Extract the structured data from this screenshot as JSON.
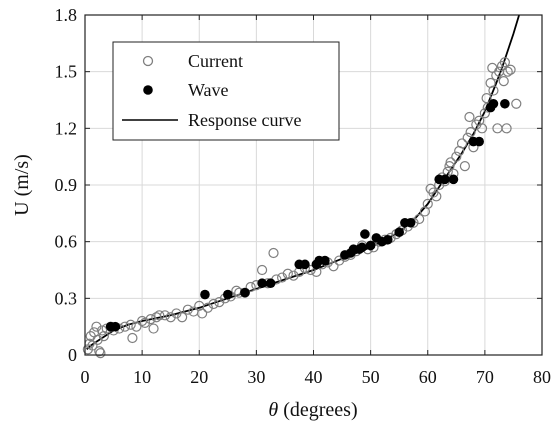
{
  "chart_data": {
    "type": "scatter",
    "xlabel_symbol": "θ",
    "xlabel_unit": " (degrees)",
    "ylabel": "U (m/s)",
    "xlim": [
      0,
      80
    ],
    "ylim": [
      0,
      1.8
    ],
    "xticks": [
      0,
      10,
      20,
      30,
      40,
      50,
      60,
      70,
      80
    ],
    "yticks": [
      0,
      0.3,
      0.6,
      0.9,
      1.2,
      1.5,
      1.8
    ],
    "xtick_labels": [
      "0",
      "10",
      "20",
      "30",
      "40",
      "50",
      "60",
      "70",
      "80"
    ],
    "ytick_labels": [
      "0",
      "0.3",
      "0.6",
      "0.9",
      "1.2",
      "1.5",
      "1.8"
    ],
    "grid": true,
    "legend_position": "top-left",
    "series": [
      {
        "name": "Current",
        "marker": "open-circle",
        "color": "#7f7f7f",
        "points": [
          [
            0.5,
            0.03
          ],
          [
            0.8,
            0.06
          ],
          [
            1.0,
            0.1
          ],
          [
            1.3,
            0.05
          ],
          [
            1.6,
            0.12
          ],
          [
            2.0,
            0.15
          ],
          [
            2.2,
            0.08
          ],
          [
            2.5,
            0.02
          ],
          [
            2.7,
            0.01
          ],
          [
            3.0,
            0.13
          ],
          [
            3.3,
            0.1
          ],
          [
            3.8,
            0.14
          ],
          [
            4.5,
            0.15
          ],
          [
            5.0,
            0.13
          ],
          [
            6.0,
            0.14
          ],
          [
            7.0,
            0.15
          ],
          [
            8.0,
            0.16
          ],
          [
            8.3,
            0.09
          ],
          [
            9.0,
            0.15
          ],
          [
            10.0,
            0.18
          ],
          [
            10.5,
            0.17
          ],
          [
            11.5,
            0.19
          ],
          [
            12.0,
            0.14
          ],
          [
            12.5,
            0.2
          ],
          [
            13.0,
            0.21
          ],
          [
            14.0,
            0.21
          ],
          [
            15.0,
            0.2
          ],
          [
            16.0,
            0.22
          ],
          [
            17.0,
            0.2
          ],
          [
            18.0,
            0.24
          ],
          [
            19.0,
            0.23
          ],
          [
            20.0,
            0.26
          ],
          [
            20.5,
            0.22
          ],
          [
            21.5,
            0.25
          ],
          [
            22.5,
            0.27
          ],
          [
            23.5,
            0.28
          ],
          [
            24.5,
            0.3
          ],
          [
            25.5,
            0.31
          ],
          [
            26.5,
            0.34
          ],
          [
            27.0,
            0.33
          ],
          [
            28.0,
            0.33
          ],
          [
            29.0,
            0.36
          ],
          [
            30.0,
            0.37
          ],
          [
            31.0,
            0.45
          ],
          [
            32.0,
            0.38
          ],
          [
            33.0,
            0.54
          ],
          [
            33.5,
            0.4
          ],
          [
            34.5,
            0.41
          ],
          [
            35.5,
            0.43
          ],
          [
            36.5,
            0.42
          ],
          [
            37.5,
            0.44
          ],
          [
            38.5,
            0.46
          ],
          [
            39.5,
            0.45
          ],
          [
            40.5,
            0.44
          ],
          [
            41.5,
            0.48
          ],
          [
            42.5,
            0.49
          ],
          [
            43.5,
            0.47
          ],
          [
            44.5,
            0.5
          ],
          [
            45.5,
            0.52
          ],
          [
            46.5,
            0.53
          ],
          [
            47.5,
            0.55
          ],
          [
            48.5,
            0.58
          ],
          [
            49.5,
            0.56
          ],
          [
            50.5,
            0.57
          ],
          [
            51.5,
            0.6
          ],
          [
            52.5,
            0.61
          ],
          [
            53.5,
            0.62
          ],
          [
            54.5,
            0.64
          ],
          [
            55.5,
            0.66
          ],
          [
            56.5,
            0.68
          ],
          [
            57.5,
            0.7
          ],
          [
            58.5,
            0.72
          ],
          [
            59.5,
            0.76
          ],
          [
            60.0,
            0.8
          ],
          [
            60.5,
            0.88
          ],
          [
            61.0,
            0.86
          ],
          [
            61.5,
            0.84
          ],
          [
            62.0,
            0.9
          ],
          [
            62.5,
            0.94
          ],
          [
            63.0,
            0.92
          ],
          [
            63.5,
            0.97
          ],
          [
            63.8,
            1.0
          ],
          [
            64.0,
            1.02
          ],
          [
            64.5,
            0.96
          ],
          [
            65.0,
            1.05
          ],
          [
            65.5,
            1.08
          ],
          [
            66.0,
            1.12
          ],
          [
            66.5,
            1.0
          ],
          [
            67.0,
            1.15
          ],
          [
            67.3,
            1.26
          ],
          [
            67.5,
            1.18
          ],
          [
            68.0,
            1.1
          ],
          [
            68.5,
            1.22
          ],
          [
            69.0,
            1.24
          ],
          [
            69.5,
            1.2
          ],
          [
            70.0,
            1.28
          ],
          [
            70.3,
            1.36
          ],
          [
            70.5,
            1.31
          ],
          [
            71.0,
            1.44
          ],
          [
            71.3,
            1.52
          ],
          [
            71.5,
            1.4
          ],
          [
            72.0,
            1.48
          ],
          [
            72.2,
            1.2
          ],
          [
            72.5,
            1.5
          ],
          [
            73.0,
            1.53
          ],
          [
            73.3,
            1.45
          ],
          [
            73.5,
            1.55
          ],
          [
            73.8,
            1.2
          ],
          [
            74.0,
            1.5
          ],
          [
            74.5,
            1.51
          ],
          [
            75.5,
            1.33
          ]
        ]
      },
      {
        "name": "Wave",
        "marker": "filled-circle",
        "color": "#000000",
        "points": [
          [
            4.5,
            0.15
          ],
          [
            5.3,
            0.15
          ],
          [
            21.0,
            0.32
          ],
          [
            25.0,
            0.32
          ],
          [
            28.0,
            0.33
          ],
          [
            31.0,
            0.38
          ],
          [
            32.5,
            0.38
          ],
          [
            37.5,
            0.48
          ],
          [
            38.5,
            0.48
          ],
          [
            40.5,
            0.48
          ],
          [
            41.0,
            0.5
          ],
          [
            42.0,
            0.5
          ],
          [
            45.5,
            0.53
          ],
          [
            46.5,
            0.54
          ],
          [
            47.0,
            0.56
          ],
          [
            48.0,
            0.56
          ],
          [
            48.5,
            0.57
          ],
          [
            49.0,
            0.64
          ],
          [
            50.0,
            0.58
          ],
          [
            51.0,
            0.62
          ],
          [
            52.0,
            0.6
          ],
          [
            53.0,
            0.61
          ],
          [
            55.0,
            0.65
          ],
          [
            56.0,
            0.7
          ],
          [
            57.0,
            0.7
          ],
          [
            62.0,
            0.93
          ],
          [
            63.0,
            0.93
          ],
          [
            64.5,
            0.93
          ],
          [
            68.0,
            1.13
          ],
          [
            69.0,
            1.13
          ],
          [
            71.0,
            1.31
          ],
          [
            71.5,
            1.33
          ],
          [
            73.5,
            1.33
          ]
        ]
      },
      {
        "name": "Response curve",
        "marker": "line",
        "color": "#000000",
        "points": [
          [
            0.3,
            0.03
          ],
          [
            1,
            0.05
          ],
          [
            2,
            0.07
          ],
          [
            3,
            0.09
          ],
          [
            4,
            0.11
          ],
          [
            5,
            0.13
          ],
          [
            7.5,
            0.16
          ],
          [
            10,
            0.18
          ],
          [
            15,
            0.21
          ],
          [
            20,
            0.25
          ],
          [
            25,
            0.3
          ],
          [
            30,
            0.35
          ],
          [
            35,
            0.4
          ],
          [
            40,
            0.45
          ],
          [
            45,
            0.51
          ],
          [
            50,
            0.57
          ],
          [
            55,
            0.65
          ],
          [
            58,
            0.73
          ],
          [
            60,
            0.8
          ],
          [
            62,
            0.89
          ],
          [
            64,
            0.98
          ],
          [
            66,
            1.07
          ],
          [
            68,
            1.17
          ],
          [
            70,
            1.29
          ],
          [
            72,
            1.44
          ],
          [
            73,
            1.52
          ],
          [
            74,
            1.61
          ],
          [
            75,
            1.7
          ],
          [
            76,
            1.8
          ]
        ]
      }
    ]
  }
}
